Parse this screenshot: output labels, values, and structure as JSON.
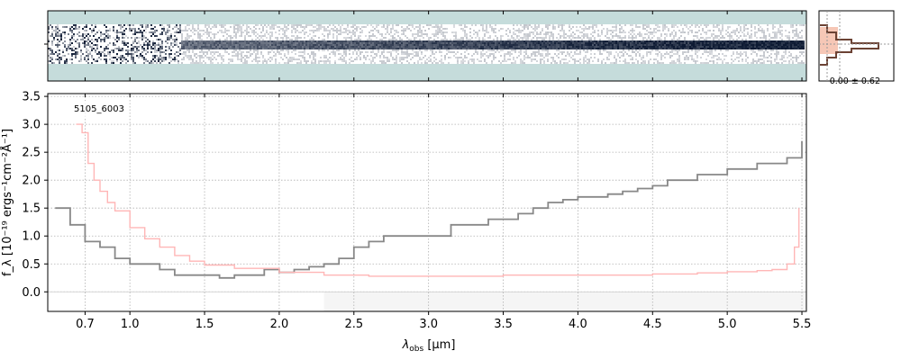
{
  "chart_data": [
    {
      "type": "heatmap",
      "panel": "2D spectrum",
      "description_colors": {
        "background": "#c5dcdb",
        "low": "#ffffff",
        "high": "#0d1a33"
      },
      "xlim": [
        0.45,
        5.53
      ],
      "grid": false
    },
    {
      "type": "line",
      "panel": "1D spectrum",
      "label": "5105_6003",
      "xlabel_main": "λ",
      "xlabel_sub": "obs",
      "xlabel_unit": "[μm]",
      "ylabel": "f_λ [10⁻¹⁹ ergs⁻¹cm⁻²Å⁻¹]",
      "xlim": [
        0.45,
        5.53
      ],
      "ylim": [
        -0.35,
        3.55
      ],
      "x_ticks": [
        0.7,
        1.0,
        1.5,
        2.0,
        2.5,
        3.0,
        3.5,
        4.0,
        4.5,
        5.0,
        5.5
      ],
      "x_tick_labels": [
        "0.7",
        "1.0",
        "1.5",
        "2.0",
        "2.5",
        "3.0",
        "3.5",
        "4.0",
        "4.5",
        "5.0",
        "5.5"
      ],
      "y_ticks": [
        0.0,
        0.5,
        1.0,
        1.5,
        2.0,
        2.5,
        3.0,
        3.5
      ],
      "y_tick_labels": [
        "0.0",
        "0.5",
        "1.0",
        "1.5",
        "2.0",
        "2.5",
        "3.0",
        "3.5"
      ],
      "grid": true,
      "series": [
        {
          "color": "#888888",
          "x": [
            0.5,
            0.6,
            0.7,
            0.8,
            0.9,
            1.0,
            1.1,
            1.2,
            1.3,
            1.4,
            1.5,
            1.6,
            1.7,
            1.8,
            1.9,
            2.0,
            2.1,
            2.2,
            2.3,
            2.4,
            2.5,
            2.6,
            2.7,
            2.8,
            2.9,
            3.0,
            3.1,
            3.15,
            3.2,
            3.3,
            3.4,
            3.5,
            3.6,
            3.7,
            3.8,
            3.9,
            4.0,
            4.1,
            4.2,
            4.3,
            4.4,
            4.5,
            4.6,
            4.7,
            4.8,
            4.9,
            5.0,
            5.1,
            5.2,
            5.3,
            5.4,
            5.5
          ],
          "y": [
            1.5,
            1.2,
            0.9,
            0.8,
            0.6,
            0.5,
            0.5,
            0.4,
            0.3,
            0.3,
            0.3,
            0.25,
            0.3,
            0.3,
            0.4,
            0.35,
            0.4,
            0.45,
            0.5,
            0.6,
            0.8,
            0.9,
            1.0,
            1.0,
            1.0,
            1.0,
            1.0,
            1.2,
            1.2,
            1.2,
            1.3,
            1.3,
            1.4,
            1.5,
            1.6,
            1.65,
            1.7,
            1.7,
            1.75,
            1.8,
            1.85,
            1.9,
            2.0,
            2.0,
            2.1,
            2.1,
            2.2,
            2.2,
            2.3,
            2.3,
            2.4,
            2.7
          ]
        },
        {
          "color": "#ffb6b6",
          "x": [
            0.64,
            0.68,
            0.72,
            0.76,
            0.8,
            0.85,
            0.9,
            1.0,
            1.1,
            1.2,
            1.3,
            1.4,
            1.5,
            1.7,
            2.0,
            2.3,
            2.6,
            3.0,
            3.5,
            4.0,
            4.5,
            4.8,
            5.0,
            5.2,
            5.3,
            5.4,
            5.45,
            5.48
          ],
          "y": [
            3.0,
            2.85,
            2.3,
            2.0,
            1.8,
            1.6,
            1.45,
            1.15,
            0.95,
            0.8,
            0.65,
            0.55,
            0.48,
            0.42,
            0.35,
            0.3,
            0.28,
            0.28,
            0.3,
            0.3,
            0.32,
            0.34,
            0.36,
            0.38,
            0.4,
            0.5,
            0.8,
            1.5
          ]
        }
      ]
    },
    {
      "type": "line",
      "panel": "profile",
      "label": "0.00 ± 0.62"
    }
  ]
}
